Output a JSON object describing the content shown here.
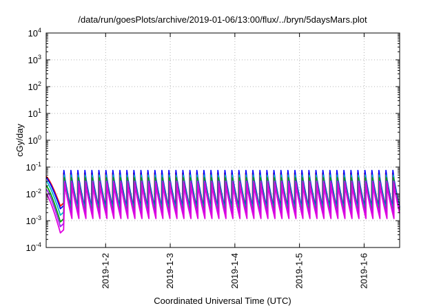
{
  "chart_data": {
    "type": "line",
    "title": "/data/run/goesPlots/archive/2019-01-06/13:00/flux/../bryn/5daysMars.plot",
    "xlabel": "Coordinated Universal Time (UTC)",
    "ylabel": "cGy/day",
    "yscale": "log",
    "ylim": [
      0.0001,
      10000
    ],
    "y_ticks": [
      {
        "mantissa": "10",
        "exp": "-4",
        "value": 0.0001
      },
      {
        "mantissa": "10",
        "exp": "-3",
        "value": 0.001
      },
      {
        "mantissa": "10",
        "exp": "-2",
        "value": 0.01
      },
      {
        "mantissa": "10",
        "exp": "-1",
        "value": 0.1
      },
      {
        "mantissa": "10",
        "exp": "0",
        "value": 1
      },
      {
        "mantissa": "10",
        "exp": "1",
        "value": 10
      },
      {
        "mantissa": "10",
        "exp": "2",
        "value": 100
      },
      {
        "mantissa": "10",
        "exp": "3",
        "value": 1000
      },
      {
        "mantissa": "10",
        "exp": "4",
        "value": 10000
      }
    ],
    "xlim_days": [
      0.08,
      5.55
    ],
    "x_ticks": [
      {
        "label": "2019-1-2",
        "day": 1
      },
      {
        "label": "2019-1-3",
        "day": 2
      },
      {
        "label": "2019-1-4",
        "day": 3
      },
      {
        "label": "2019-1-5",
        "day": 4
      },
      {
        "label": "2019-1-6",
        "day": 5
      }
    ],
    "grid": true,
    "oscillation_period_hours": 2.6,
    "series": [
      {
        "color": "#ff0000",
        "peak": 0.06,
        "trough": 0.003,
        "start": 0.045,
        "dip": 0.0035
      },
      {
        "color": "#0000ff",
        "peak": 0.075,
        "trough": 0.003,
        "start": 0.04,
        "dip": 0.0028
      },
      {
        "color": "#00b8c8",
        "peak": 0.05,
        "trough": 0.0025,
        "start": 0.03,
        "dip": 0.0016
      },
      {
        "color": "#00a000",
        "peak": 0.04,
        "trough": 0.002,
        "start": 0.02,
        "dip": 0.0009
      },
      {
        "color": "#a020f0",
        "peak": 0.03,
        "trough": 0.0018,
        "start": 0.015,
        "dip": 0.0006
      },
      {
        "color": "#e000e0",
        "peak": 0.025,
        "trough": 0.0012,
        "start": 0.01,
        "dip": 0.00035
      }
    ]
  }
}
